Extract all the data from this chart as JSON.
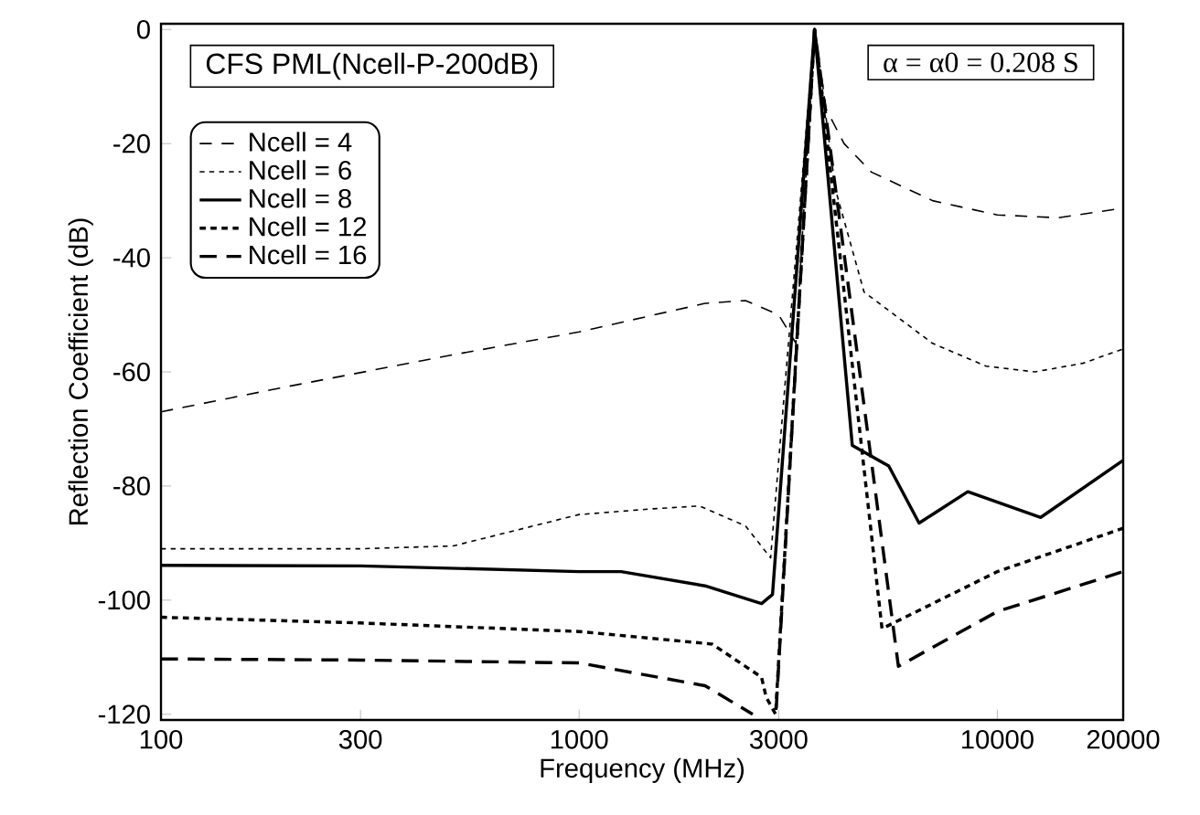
{
  "chart_data": {
    "type": "line",
    "xlabel": "Frequency (MHz)",
    "ylabel": "Reflection Coefficient (dB)",
    "log": "x",
    "xlim": [
      100,
      20000
    ],
    "xticks": [
      100,
      300,
      1000,
      3000,
      10000,
      20000
    ],
    "ylim": [
      -121,
      1
    ],
    "yticks": [
      0,
      -20,
      -40,
      -60,
      -80,
      -100,
      -120
    ],
    "legend": "top left",
    "annotations": [
      "CFS PML(Ncell-P-200dB)",
      "α = α0 = 0.208 S"
    ],
    "series": [
      {
        "name": "Ncell = 4",
        "color": "#000000",
        "line_style": "dashed",
        "x": [
          100,
          200,
          500,
          1000,
          2000,
          2500,
          3000,
          3300,
          3656,
          3900,
          4300,
          5000,
          7000,
          10000,
          14000,
          20000
        ],
        "values": [
          -67,
          -62.6,
          -57,
          -53,
          -48,
          -47.5,
          -50,
          -55,
          0,
          -14,
          -20,
          -25,
          -30,
          -32.5,
          -33,
          -31.3
        ]
      },
      {
        "name": "Ncell = 6",
        "color": "#000000",
        "line_style": "dotted",
        "x": [
          100,
          300,
          500,
          1000,
          1500,
          1941,
          2500,
          2870,
          3656,
          4100,
          4800,
          7000,
          9400,
          12300,
          16000,
          20000
        ],
        "values": [
          -91,
          -91,
          -90.5,
          -85,
          -84,
          -83.5,
          -87,
          -92.6,
          0,
          -28,
          -46,
          -55,
          -59,
          -60,
          -58.5,
          -56
        ]
      },
      {
        "name": "Ncell = 8",
        "color": "#000000",
        "line_style": "solid",
        "x": [
          100,
          300,
          1000,
          1260,
          2000,
          2730,
          2900,
          3656,
          4500,
          5500,
          6500,
          8500,
          12700,
          20000
        ],
        "values": [
          -93.9,
          -94,
          -95,
          -95,
          -97.5,
          -100.6,
          -99,
          0,
          -72.9,
          -76.5,
          -86.5,
          -81,
          -85.5,
          -75.5
        ]
      },
      {
        "name": "Ncell = 12",
        "color": "#000000",
        "line_style": "dotted",
        "x": [
          100,
          300,
          1000,
          2080,
          2730,
          2800,
          2950,
          3656,
          5300,
          10000,
          20000
        ],
        "values": [
          -103,
          -104,
          -105.5,
          -107.7,
          -113.5,
          -117,
          -120,
          0,
          -105,
          -95,
          -87.4
        ]
      },
      {
        "name": "Ncell = 16",
        "color": "#000000",
        "line_style": "dashed",
        "x": [
          100,
          300,
          1000,
          2000,
          2600,
          2650,
          2960,
          3656,
          5800,
          10000,
          20000
        ],
        "values": [
          -110.3,
          -110.5,
          -111,
          -115,
          -120,
          null,
          -119,
          0,
          -111.6,
          -102,
          -95
        ]
      }
    ]
  }
}
